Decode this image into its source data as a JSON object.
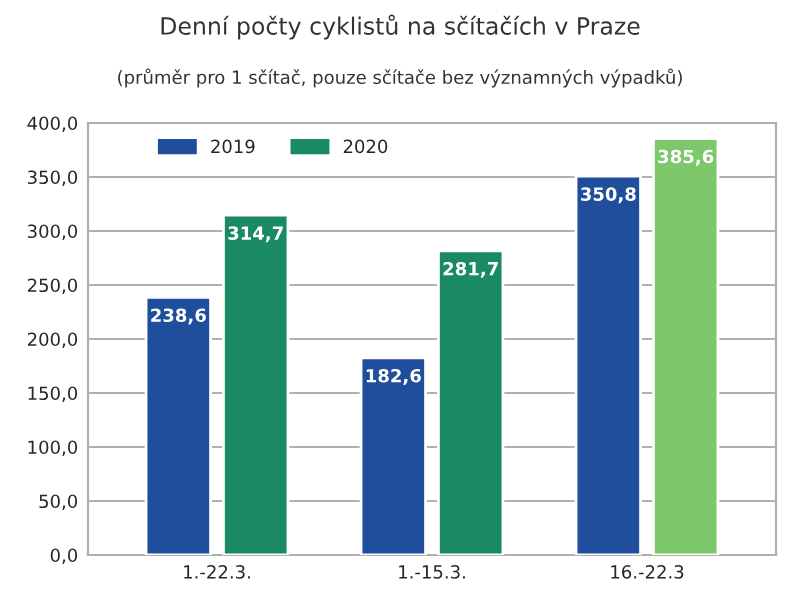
{
  "chart_data": {
    "type": "bar",
    "title": "Denní počty cyklistů na sčítačích v Praze",
    "subtitle": "(průměr pro 1 sčítač, pouze sčítače bez významných výpadků)",
    "categories": [
      "1.-22.3.",
      "1.-15.3.",
      "16.-22.3"
    ],
    "series": [
      {
        "name": "2019",
        "color": "#1f4e9c",
        "values": [
          238.6,
          182.6,
          350.8
        ],
        "value_labels": [
          "238,6",
          "182,6",
          "350,8"
        ]
      },
      {
        "name": "2020",
        "color": "#1a8a64",
        "colors": [
          "#1a8a64",
          "#1a8a64",
          "#7cc86a"
        ],
        "values": [
          314.7,
          281.7,
          385.6
        ],
        "value_labels": [
          "314,7",
          "281,7",
          "385,6"
        ]
      }
    ],
    "ylim": [
      0,
      400
    ],
    "yticks": [
      {
        "value": 0,
        "label": "0,0"
      },
      {
        "value": 50,
        "label": "50,0"
      },
      {
        "value": 100,
        "label": "100,0"
      },
      {
        "value": 150,
        "label": "150,0"
      },
      {
        "value": 200,
        "label": "200,0"
      },
      {
        "value": 250,
        "label": "250,0"
      },
      {
        "value": 300,
        "label": "300,0"
      },
      {
        "value": 350,
        "label": "350,0"
      },
      {
        "value": 400,
        "label": "400,0"
      }
    ],
    "grid": "y",
    "legend": "top left"
  }
}
